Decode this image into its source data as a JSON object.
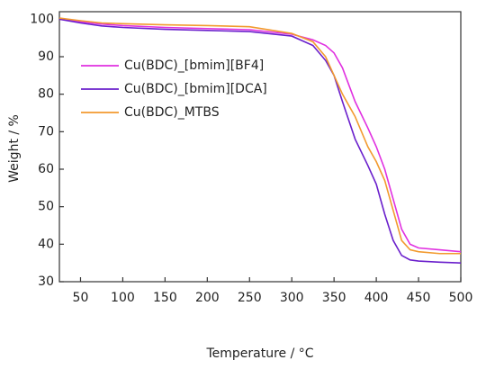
{
  "chart_data": {
    "type": "line",
    "x_label": "Temperature / °C",
    "y_label": "Weight / %",
    "x": [
      25,
      50,
      75,
      100,
      150,
      200,
      250,
      300,
      325,
      340,
      350,
      360,
      375,
      390,
      400,
      410,
      420,
      430,
      440,
      450,
      475,
      500
    ],
    "series": [
      {
        "name": "Cu(BDC)_[bmim][BF4]",
        "color": "#e030e0",
        "values": [
          100,
          99.3,
          98.7,
          98.3,
          97.8,
          97.5,
          97.2,
          96,
          94.5,
          93,
          91,
          87,
          78,
          71,
          66,
          60,
          52,
          44,
          40,
          39,
          38.5,
          38
        ]
      },
      {
        "name": "Cu(BDC)_[bmim][DCA]",
        "color": "#6a1fcc",
        "values": [
          100,
          99,
          98.2,
          97.8,
          97.3,
          97,
          96.7,
          95.5,
          93,
          89,
          85,
          78,
          68,
          61,
          56,
          48,
          41,
          37,
          35.8,
          35.5,
          35.2,
          35
        ]
      },
      {
        "name": "Cu(BDC)_MTBS",
        "color": "#f29a2e",
        "values": [
          100.3,
          99.6,
          99,
          98.8,
          98.5,
          98.3,
          98,
          96.2,
          94,
          90,
          85,
          80,
          74,
          66,
          62,
          57,
          49,
          41,
          38.5,
          38,
          37.5,
          37.5
        ]
      }
    ],
    "xlim": [
      25,
      500
    ],
    "xticks": [
      50,
      100,
      150,
      200,
      250,
      300,
      350,
      400,
      450,
      500
    ],
    "ylim": [
      30,
      102
    ],
    "yticks": [
      30,
      40,
      50,
      60,
      70,
      80,
      90,
      100
    ],
    "grid": false,
    "legend": "upper-left"
  }
}
